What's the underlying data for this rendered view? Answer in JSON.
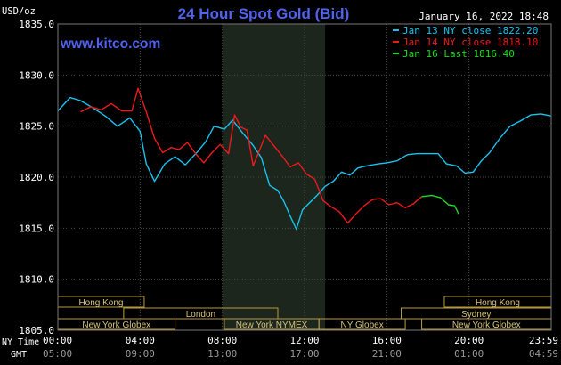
{
  "chart_data": {
    "type": "line",
    "title": "24 Hour Spot Gold (Bid)",
    "site": "www.kitco.com",
    "timestamp": "January 16, 2022 18:48",
    "ylabel": "USD/oz",
    "ylim": [
      1805,
      1835
    ],
    "yticks": [
      "1835.0",
      "1830.0",
      "1825.0",
      "1820.0",
      "1815.0",
      "1810.0",
      "1805.0"
    ],
    "xlim": [
      0,
      24
    ],
    "xticks_ny": [
      "00:00",
      "04:00",
      "08:00",
      "12:00",
      "16:00",
      "20:00",
      "23:59"
    ],
    "xticks_gmt": [
      "05:00",
      "09:00",
      "13:00",
      "17:00",
      "21:00",
      "01:00",
      "04:59"
    ],
    "row_labels": {
      "ny": "NY Time",
      "gmt": "GMT"
    },
    "grid": true,
    "shaded_session": [
      8,
      13
    ],
    "legend": [
      {
        "label": "Jan 13 NY close 1822.20",
        "color": "#19c3ee"
      },
      {
        "label": "Jan 14 NY close 1818.10",
        "color": "#ee1a1a"
      },
      {
        "label": "Jan 16 Last 1816.40",
        "color": "#19dc19"
      }
    ],
    "series": [
      {
        "color": "#19c3ee",
        "x": [
          0,
          0.6,
          1.1,
          1.7,
          2.3,
          2.9,
          3.5,
          4.0,
          4.3,
          4.7,
          5.2,
          5.7,
          6.2,
          6.8,
          7.2,
          7.6,
          8.1,
          8.5,
          9.0,
          9.5,
          9.9,
          10.3,
          10.7,
          11.0,
          11.3,
          11.6,
          11.9,
          12.2,
          12.6,
          13.0,
          13.4,
          13.8,
          14.2,
          14.6,
          15.0,
          15.6,
          16.0,
          16.5,
          17.0,
          17.5,
          18.0,
          18.5,
          18.9,
          19.4,
          19.8,
          20.2,
          20.6,
          21.0,
          21.5,
          22.0,
          22.5,
          23.0,
          23.5,
          23.98
        ],
        "y": [
          1826.5,
          1827.8,
          1827.5,
          1826.8,
          1826,
          1825,
          1825.8,
          1824.5,
          1821.3,
          1819.6,
          1821.3,
          1822,
          1821.2,
          1822.5,
          1823.5,
          1825,
          1824.7,
          1825.6,
          1824.3,
          1823.1,
          1821.9,
          1819.2,
          1818.7,
          1817.6,
          1816.2,
          1814.9,
          1816.8,
          1817.4,
          1818.2,
          1819.1,
          1819.6,
          1820.5,
          1820.2,
          1820.9,
          1821.1,
          1821.3,
          1821.4,
          1821.6,
          1822.2,
          1822.3,
          1822.3,
          1822.3,
          1821.3,
          1821.1,
          1820.4,
          1820.5,
          1821.6,
          1822.4,
          1823.8,
          1825.0,
          1825.5,
          1826.1,
          1826.2,
          1826.0
        ]
      },
      {
        "color": "#ee1a1a",
        "x": [
          1.1,
          1.6,
          2.1,
          2.6,
          3.1,
          3.6,
          3.9,
          4.3,
          4.7,
          5.1,
          5.5,
          5.9,
          6.3,
          6.7,
          7.1,
          7.5,
          7.9,
          8.3,
          8.6,
          8.9,
          9.2,
          9.5,
          9.8,
          10.1,
          10.5,
          10.9,
          11.3,
          11.7,
          12.1,
          12.5,
          12.9,
          13.3,
          13.7,
          14.1,
          14.5,
          14.9,
          15.3,
          15.7,
          16.1,
          16.5,
          16.9,
          17.3,
          17.7
        ],
        "y": [
          1826.4,
          1826.9,
          1826.6,
          1827.2,
          1826.5,
          1826.5,
          1828.7,
          1826.4,
          1823.8,
          1822.4,
          1822.9,
          1822.7,
          1823.4,
          1822.3,
          1821.4,
          1822.4,
          1823.2,
          1822.3,
          1826.1,
          1824.9,
          1824.6,
          1821.1,
          1822.6,
          1824.1,
          1823.1,
          1822.1,
          1821.0,
          1821.4,
          1820.3,
          1819.8,
          1817.7,
          1817.1,
          1816.6,
          1815.5,
          1816.4,
          1817.2,
          1817.8,
          1817.9,
          1817.3,
          1817.5,
          1817.0,
          1817.4,
          1818.1
        ]
      },
      {
        "color": "#19dc19",
        "x": [
          17.7,
          18.2,
          18.6,
          19.0,
          19.3,
          19.5
        ],
        "y": [
          1818.1,
          1818.2,
          1818.0,
          1817.3,
          1817.2,
          1816.4
        ]
      }
    ],
    "sessions": [
      {
        "label": "Hong Kong",
        "row": 1,
        "from": 0,
        "to": 4.2
      },
      {
        "label": "London",
        "row": 2,
        "from": 3.2,
        "to": 10.7
      },
      {
        "label": "New York Globex",
        "row": 3,
        "from": 0,
        "to": 5.7
      },
      {
        "label": "New York NYMEX",
        "row": 3,
        "from": 8.1,
        "to": 12.7
      },
      {
        "label": "NY Globex",
        "row": 3,
        "from": 12.7,
        "to": 16.9
      },
      {
        "label": "Hong Kong",
        "row": 1,
        "from": 18.8,
        "to": 24
      },
      {
        "label": "Sydney",
        "row": 2,
        "from": 16.7,
        "to": 24
      },
      {
        "label": "New York Globex",
        "row": 3,
        "from": 17.7,
        "to": 24
      }
    ]
  }
}
